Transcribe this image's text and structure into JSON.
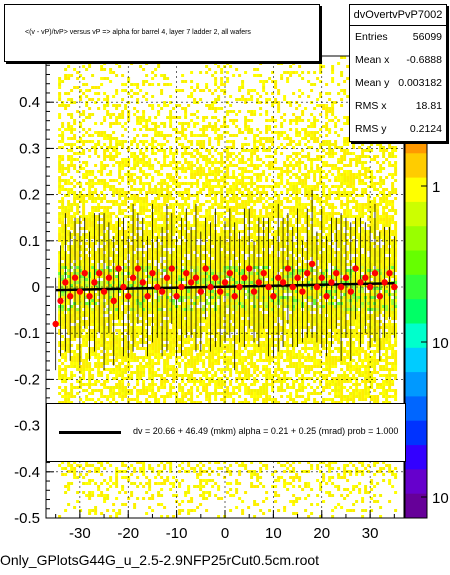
{
  "title": "<(v - vP)/tvP> versus   vP => alpha for barrel 4, layer 7 ladder 2, all wafers",
  "stats": {
    "name": "dvOvertvPvP7002",
    "rows": [
      {
        "label": "Entries",
        "value": "56099"
      },
      {
        "label": "Mean x",
        "value": "-0.6888"
      },
      {
        "label": "Mean y",
        "value": "0.003182"
      },
      {
        "label": "RMS x",
        "value": "18.81"
      },
      {
        "label": "RMS y",
        "value": "0.2124"
      }
    ]
  },
  "fit_text": "dv =    20.66 +  46.49 (mkm) alpha =     0.21 +   0.25 (mrad) prob = 1.000",
  "footer": "Only_GPlotsG44G_u_2.5-2.9NFP25rCut0.5cm.root",
  "colors": {
    "profile_points": "#ff0000",
    "fit_line": "#000000"
  },
  "chart_data": {
    "type": "scatter",
    "xlim": [
      -37,
      37
    ],
    "ylim": [
      -0.5,
      0.5
    ],
    "x_ticks": [
      "-30",
      "-20",
      "-10",
      "0",
      "10",
      "20",
      "30"
    ],
    "y_ticks": [
      "-0.5",
      "-0.4",
      "-0.3",
      "-0.2",
      "-0.1",
      "0",
      "0.1",
      "0.2",
      "0.3",
      "0.4"
    ],
    "z_ticks": [
      "1",
      "10",
      "10"
    ],
    "z_scale": "log",
    "grid": true,
    "profile": {
      "x": [
        -35,
        -34,
        -33,
        -32,
        -31,
        -30,
        -29,
        -28,
        -27,
        -26,
        -25,
        -24,
        -23,
        -22,
        -21,
        -20,
        -19,
        -18,
        -17,
        -16,
        -15,
        -14,
        -13,
        -12,
        -11,
        -10,
        -9,
        -8,
        -7,
        -6,
        -5,
        -4,
        -3,
        -2,
        -1,
        0,
        1,
        2,
        3,
        4,
        5,
        6,
        7,
        8,
        9,
        10,
        11,
        12,
        13,
        14,
        15,
        16,
        17,
        18,
        19,
        20,
        21,
        22,
        23,
        24,
        25,
        26,
        27,
        28,
        29,
        30,
        31,
        32,
        33,
        34,
        35
      ],
      "y": [
        -0.08,
        -0.03,
        0.01,
        -0.02,
        0.02,
        -0.01,
        0.03,
        -0.02,
        0.01,
        0.03,
        -0.01,
        0.02,
        -0.03,
        0.04,
        0.0,
        -0.02,
        0.02,
        0.04,
        0.01,
        -0.02,
        0.03,
        0.0,
        -0.01,
        0.02,
        0.04,
        -0.02,
        0.0,
        0.03,
        0.01,
        0.02,
        -0.01,
        0.04,
        0.0,
        0.02,
        -0.01,
        0.01,
        0.03,
        -0.02,
        0.0,
        0.02,
        0.04,
        -0.01,
        0.01,
        0.03,
        0.0,
        -0.02,
        0.02,
        0.01,
        0.04,
        0.0,
        0.02,
        -0.01,
        0.03,
        0.05,
        0.0,
        0.02,
        -0.02,
        0.01,
        0.03,
        0.0,
        0.02,
        -0.01,
        0.04,
        0.01,
        0.02,
        0.0,
        0.03,
        -0.02,
        0.01,
        0.03,
        0.0
      ],
      "err": [
        0.1,
        0.12,
        0.15,
        0.14,
        0.13,
        0.16,
        0.12,
        0.14,
        0.15,
        0.13,
        0.17,
        0.12,
        0.14,
        0.11,
        0.15,
        0.13,
        0.16,
        0.12,
        0.14,
        0.13,
        0.15,
        0.11,
        0.14,
        0.16,
        0.12,
        0.13,
        0.15,
        0.14,
        0.12,
        0.16,
        0.13,
        0.11,
        0.14,
        0.15,
        0.12,
        0.13,
        0.14,
        0.16,
        0.12,
        0.15,
        0.13,
        0.11,
        0.14,
        0.12,
        0.15,
        0.13,
        0.16,
        0.14,
        0.12,
        0.13,
        0.15,
        0.11,
        0.14,
        0.16,
        0.12,
        0.15,
        0.13,
        0.14,
        0.12,
        0.16,
        0.13,
        0.15,
        0.11,
        0.14,
        0.12,
        0.13,
        0.15,
        0.14,
        0.12,
        0.1,
        0.11
      ]
    },
    "fit_line": {
      "intercept_y": 0.0007,
      "slope_per_x": 0.00021
    }
  }
}
